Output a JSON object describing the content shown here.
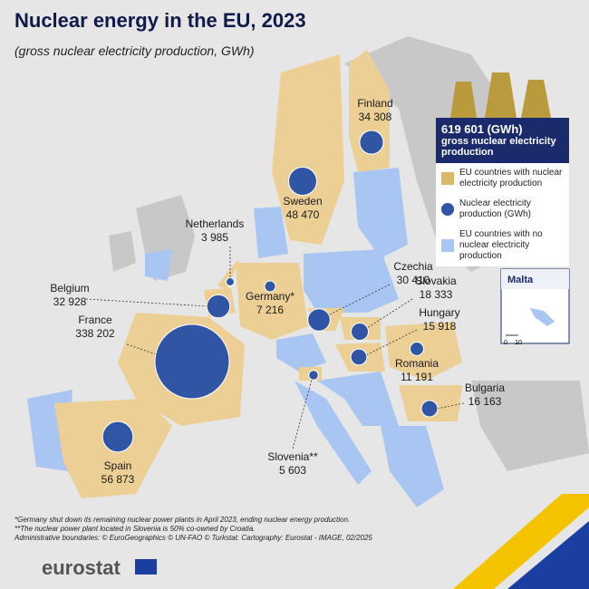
{
  "header": {
    "title": "Nuclear energy in the EU, 2023",
    "subtitle": "(gross nuclear electricity production, GWh)"
  },
  "legend": {
    "total_value": "619 601 (GWh)",
    "total_caption": "gross nuclear electricity production",
    "items": [
      "EU countries with nuclear electricity production",
      "Nuclear electricity production (GWh)",
      "EU countries with no nuclear electricity production"
    ]
  },
  "countries": [
    {
      "name": "Finland",
      "label": "34 308",
      "value": 34308
    },
    {
      "name": "Sweden",
      "label": "48 470",
      "value": 48470
    },
    {
      "name": "Netherlands",
      "label": "3 985",
      "value": 3985
    },
    {
      "name": "Belgium",
      "label": "32 928",
      "value": 32928
    },
    {
      "name": "France",
      "label": "338 202",
      "value": 338202
    },
    {
      "name": "Germany*",
      "label": "7 216",
      "value": 7216
    },
    {
      "name": "Czechia",
      "label": "30 410",
      "value": 30410
    },
    {
      "name": "Slovakia",
      "label": "18 333",
      "value": 18333
    },
    {
      "name": "Hungary",
      "label": "15 918",
      "value": 15918
    },
    {
      "name": "Romania",
      "label": "11 191",
      "value": 11191
    },
    {
      "name": "Bulgaria",
      "label": "16 163",
      "value": 16163
    },
    {
      "name": "Slovenia**",
      "label": "5 603",
      "value": 5603
    },
    {
      "name": "Spain",
      "label": "56 873",
      "value": 56873
    }
  ],
  "inset": {
    "title": "Malta",
    "scale_labels": [
      "0",
      "10"
    ]
  },
  "footnotes": [
    "*Germany shut down its remaining nuclear power plants in April 2023, ending nuclear energy production.",
    "**The nuclear power plant located in Slovenia is 50% co-owned by Croatia.",
    "Administrative boundaries: © EuroGeographics © UN-FAO © Turkstat. Cartography: Eurostat - IMAGE, 02/2025"
  ],
  "logo": "eurostat"
}
